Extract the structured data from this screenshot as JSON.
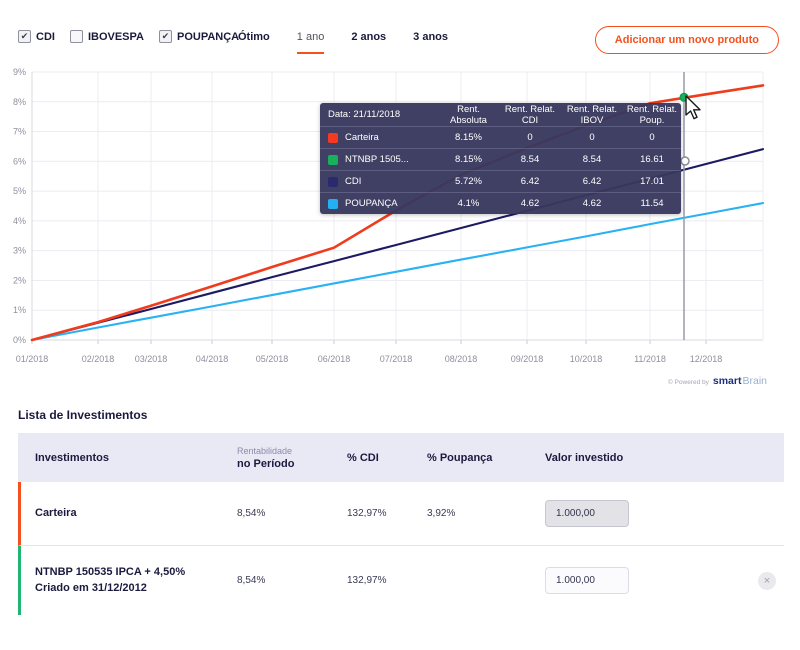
{
  "colors": {
    "accent_orange": "#f4511e",
    "carteira_red": "#f23b1d",
    "ntnbp_green": "#18b05b",
    "cdi_navy": "#1c1a63",
    "poupanca_blue": "#29b2f3",
    "row_border_carteira": "#f4511e",
    "row_border_ntnbp": "#21b573"
  },
  "filters": {
    "check_glyph": "✔",
    "items": [
      {
        "label": "CDI",
        "checked": true
      },
      {
        "label": "IBOVESPA",
        "checked": false
      },
      {
        "label": "POUPANÇA",
        "checked": true
      }
    ]
  },
  "period_tabs": {
    "items": [
      {
        "label": "Ótimo",
        "active": false
      },
      {
        "label": "1 ano",
        "active": true
      },
      {
        "label": "2 anos",
        "active": false
      },
      {
        "label": "3 anos",
        "active": false
      }
    ]
  },
  "add_product_button": "Adicionar um novo produto",
  "chart_data": {
    "type": "line",
    "x_labels": [
      "01/2018",
      "02/2018",
      "03/2018",
      "04/2018",
      "05/2018",
      "06/2018",
      "07/2018",
      "08/2018",
      "09/2018",
      "10/2018",
      "11/2018",
      "12/2018"
    ],
    "y_tick_labels": [
      "0%",
      "1%",
      "2%",
      "3%",
      "4%",
      "5%",
      "6%",
      "7%",
      "8%",
      "9%"
    ],
    "ylim": [
      0,
      9
    ],
    "grid": true,
    "legend_position": "none",
    "series": [
      {
        "name": "POUPANÇA",
        "color": "#29b2f3",
        "values": [
          0,
          0.42,
          0.75,
          1.13,
          1.51,
          1.9,
          2.29,
          2.7,
          3.11,
          3.48,
          3.89,
          4.24
        ],
        "end_value": 4.6
      },
      {
        "name": "CDI",
        "color": "#1c1a63",
        "values": [
          0,
          0.58,
          1.04,
          1.58,
          2.11,
          2.65,
          3.19,
          3.76,
          4.34,
          4.86,
          5.42,
          5.91
        ],
        "end_value": 6.41
      },
      {
        "name": "NTNBP 150535 IPCA + 4,50%",
        "color": "#18b05b",
        "values": [
          0,
          0.6,
          1.15,
          1.8,
          2.45,
          3.1,
          4.35,
          5.55,
          6.45,
          7.2,
          7.95,
          8.25
        ],
        "end_value": 8.55
      },
      {
        "name": "Carteira",
        "color": "#f23b1d",
        "values": [
          0,
          0.6,
          1.15,
          1.8,
          2.45,
          3.1,
          4.35,
          5.55,
          6.45,
          7.2,
          7.95,
          8.25
        ],
        "end_value": 8.55
      }
    ],
    "hover_date": "21/11/2018"
  },
  "tooltip": {
    "date_label": "Data: 21/11/2018",
    "columns": [
      "Rent. Absoluta",
      "Rent. Relat. CDI",
      "Rent. Relat. IBOV",
      "Rent. Relat. Poup."
    ],
    "rows": [
      {
        "name": "Carteira",
        "values": [
          "8.15%",
          "0",
          "0",
          "0"
        ]
      },
      {
        "name": "NTNBP 1505...",
        "values": [
          "8.15%",
          "8.54",
          "8.54",
          "16.61"
        ]
      },
      {
        "name": "CDI",
        "values": [
          "5.72%",
          "6.42",
          "6.42",
          "17.01"
        ]
      },
      {
        "name": "POUPANÇA",
        "values": [
          "4.1%",
          "4.62",
          "4.62",
          "11.54"
        ]
      }
    ]
  },
  "footer": {
    "powered_by": "© Powered by",
    "brand_bold": "smart",
    "brand_light": "Brain"
  },
  "investments": {
    "title": "Lista de Investimentos",
    "col_investimentos": "Investimentos",
    "col_rentabilidade_small": "Rentabilidade",
    "col_rentabilidade_big": "no Período",
    "col_cdi": "% CDI",
    "col_poupanca": "% Poupança",
    "col_valor": "Valor investido",
    "remove_icon": "×",
    "rows": [
      {
        "name": "Carteira",
        "subtitle": "",
        "rentabilidade": "8,54%",
        "pct_cdi": "132,97%",
        "pct_poupanca": "3,92%",
        "valor": "1.000,00"
      },
      {
        "name": "NTNBP 150535 IPCA + 4,50%",
        "subtitle": "Criado em 31/12/2012",
        "rentabilidade": "8,54%",
        "pct_cdi": "132,97%",
        "pct_poupanca": "",
        "valor": "1.000,00"
      }
    ]
  }
}
